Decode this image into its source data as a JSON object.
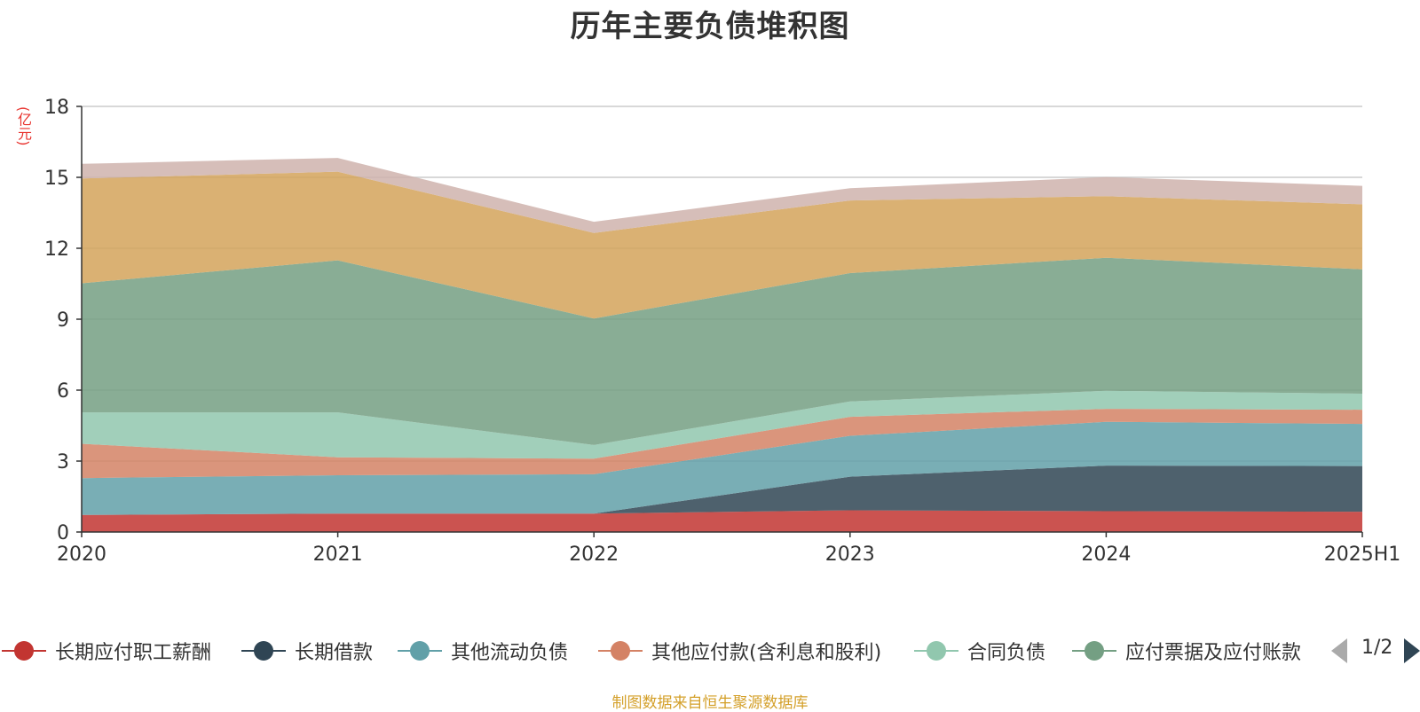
{
  "title": "历年主要负债堆积图",
  "unit": "(亿元)",
  "source_note": "制图数据来自恒生聚源数据库",
  "pager": {
    "text": "1/2"
  },
  "legend": [
    {
      "label": "长期应付职工薪酬",
      "color": "#c23531"
    },
    {
      "label": "长期借款",
      "color": "#2f4554"
    },
    {
      "label": "其他流动负债",
      "color": "#61a0a8"
    },
    {
      "label": "其他应付款(含利息和股利)",
      "color": "#d48265"
    },
    {
      "label": "合同负债",
      "color": "#91c7ae"
    },
    {
      "label": "应付票据及应付账款",
      "color": "#749f83"
    }
  ],
  "chart_data": {
    "type": "area",
    "stacked": true,
    "title": "历年主要负债堆积图",
    "ylabel": "(亿元)",
    "categories": [
      "2020",
      "2021",
      "2022",
      "2023",
      "2024",
      "2025H1"
    ],
    "ylim": [
      0,
      18
    ],
    "yticks": [
      0,
      3,
      6,
      9,
      12,
      15,
      18
    ],
    "grid": true,
    "legend_position": "bottom",
    "series": [
      {
        "name": "长期应付职工薪酬",
        "color": "#c23531",
        "values": [
          0.72,
          0.78,
          0.78,
          0.92,
          0.88,
          0.86
        ]
      },
      {
        "name": "长期借款",
        "color": "#2f4554",
        "values": [
          0.0,
          0.0,
          0.0,
          1.42,
          1.93,
          1.93
        ]
      },
      {
        "name": "其他流动负债",
        "color": "#61a0a8",
        "values": [
          1.56,
          1.62,
          1.66,
          1.73,
          1.85,
          1.78
        ]
      },
      {
        "name": "其他应付款(含利息和股利)",
        "color": "#d48265",
        "values": [
          1.45,
          0.76,
          0.66,
          0.8,
          0.55,
          0.6
        ]
      },
      {
        "name": "合同负债",
        "color": "#91c7ae",
        "values": [
          1.33,
          1.9,
          0.58,
          0.65,
          0.76,
          0.68
        ]
      },
      {
        "name": "应付票据及应付账款",
        "color": "#749f83",
        "values": [
          5.46,
          6.43,
          5.35,
          5.43,
          5.63,
          5.26
        ]
      },
      {
        "color": "#d4a35a",
        "values": [
          4.43,
          3.75,
          3.62,
          3.07,
          2.6,
          2.75
        ]
      },
      {
        "color": "#cfb3ad",
        "values": [
          0.62,
          0.58,
          0.47,
          0.52,
          0.81,
          0.78
        ]
      }
    ]
  }
}
